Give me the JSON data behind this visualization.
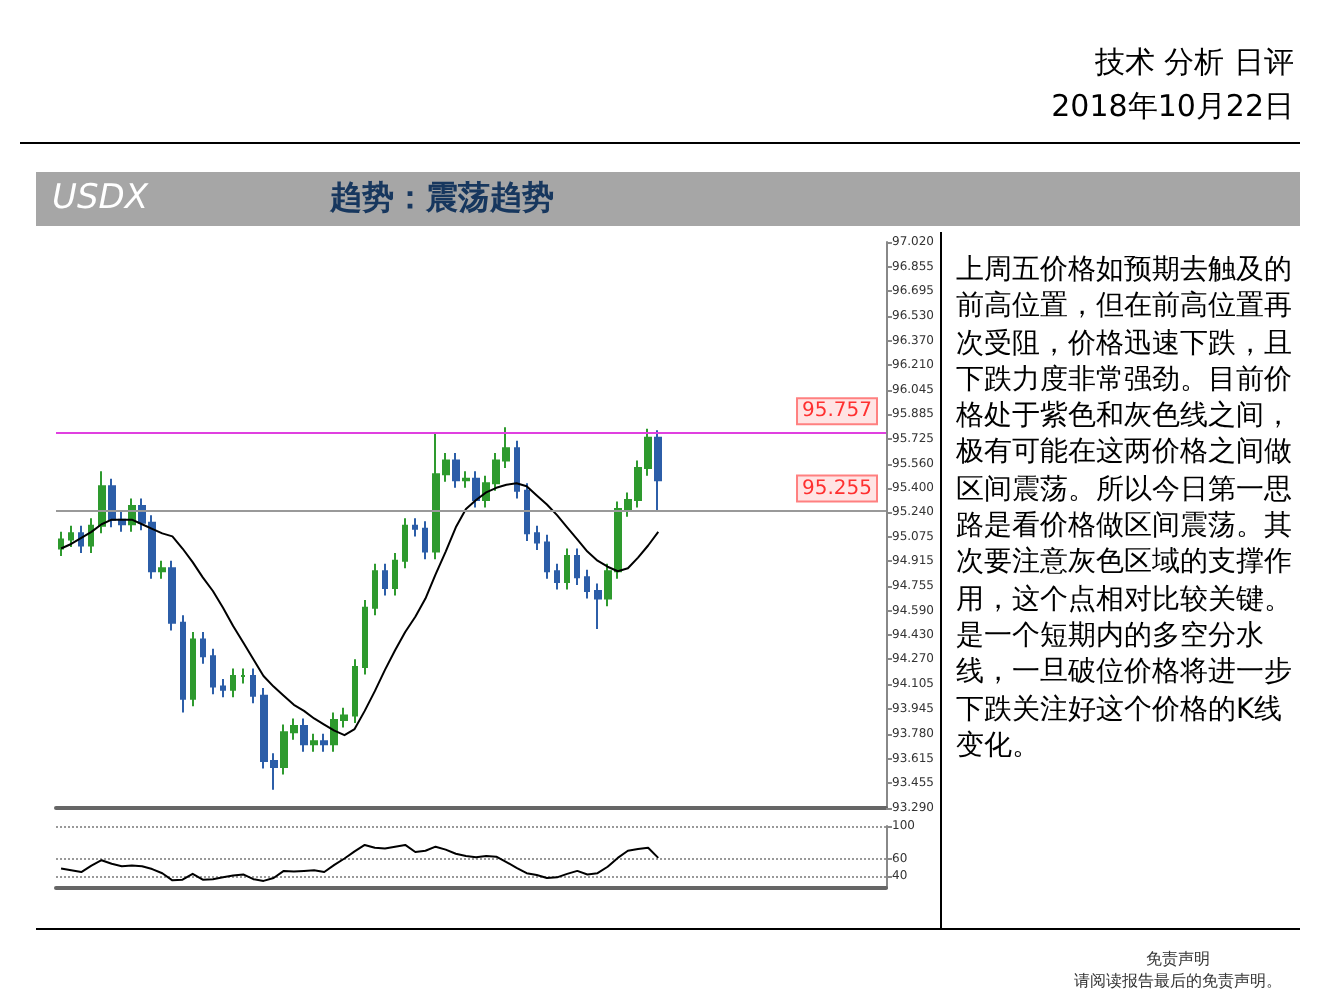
{
  "chart_data": [
    {
      "type": "candlestick",
      "title": "USDX",
      "subtitle": "趋势：震荡趋势",
      "categories": [
        null,
        null,
        null,
        null,
        null,
        null,
        null,
        null,
        null,
        null,
        null,
        null,
        null,
        null,
        null,
        null,
        null,
        null,
        null,
        null,
        null,
        null,
        null,
        null,
        null,
        null,
        null,
        null,
        null,
        null,
        null,
        null,
        null,
        null,
        null,
        null,
        null,
        null,
        null,
        null,
        null,
        null,
        null,
        null,
        null,
        null,
        null,
        null,
        null,
        null,
        null,
        null,
        null,
        null,
        null,
        null,
        null,
        null,
        null,
        null,
        null,
        null,
        null,
        null,
        null,
        null,
        null,
        null,
        null,
        null,
        null,
        null,
        null,
        null,
        null,
        null,
        null,
        null,
        null,
        null,
        null,
        null
      ],
      "ohlc": [
        [
          95.0,
          95.11,
          94.95,
          95.06
        ],
        [
          95.06,
          95.15,
          95.01,
          95.1
        ],
        [
          95.1,
          95.15,
          94.97,
          95.02
        ],
        [
          95.02,
          95.2,
          94.97,
          95.15
        ],
        [
          95.15,
          95.51,
          95.1,
          95.41
        ],
        [
          95.41,
          95.46,
          95.14,
          95.19
        ],
        [
          95.19,
          95.24,
          95.11,
          95.16
        ],
        [
          95.16,
          95.33,
          95.11,
          95.28
        ],
        [
          95.28,
          95.33,
          95.12,
          95.17
        ],
        [
          95.17,
          95.22,
          94.8,
          94.85
        ],
        [
          94.85,
          94.92,
          94.8,
          94.87
        ],
        [
          94.87,
          94.92,
          94.46,
          94.51
        ],
        [
          94.51,
          94.56,
          93.92,
          94.01
        ],
        [
          94.01,
          94.45,
          93.96,
          94.4
        ],
        [
          94.4,
          94.45,
          94.24,
          94.29
        ],
        [
          94.29,
          94.34,
          94.04,
          94.09
        ],
        [
          94.09,
          94.14,
          94.02,
          94.07
        ],
        [
          94.07,
          94.21,
          94.02,
          94.16
        ],
        [
          94.16,
          94.21,
          94.11,
          94.16
        ],
        [
          94.16,
          94.21,
          93.98,
          94.03
        ],
        [
          94.03,
          94.08,
          93.55,
          93.6
        ],
        [
          93.6,
          93.65,
          93.41,
          93.56
        ],
        [
          93.56,
          93.84,
          93.51,
          93.79
        ],
        [
          93.79,
          93.88,
          93.74,
          93.83
        ],
        [
          93.83,
          93.88,
          93.66,
          93.71
        ],
        [
          93.71,
          93.78,
          93.66,
          93.73
        ],
        [
          93.73,
          93.78,
          93.66,
          93.71
        ],
        [
          93.71,
          93.92,
          93.66,
          93.87
        ],
        [
          93.87,
          93.95,
          93.82,
          93.9
        ],
        [
          93.9,
          94.27,
          93.85,
          94.22
        ],
        [
          94.22,
          94.66,
          94.17,
          94.61
        ],
        [
          94.61,
          94.9,
          94.56,
          94.85
        ],
        [
          94.85,
          94.9,
          94.69,
          94.74
        ],
        [
          94.74,
          94.97,
          94.69,
          94.92
        ],
        [
          94.92,
          95.2,
          94.87,
          95.15
        ],
        [
          95.15,
          95.2,
          95.08,
          95.13
        ],
        [
          95.13,
          95.18,
          94.93,
          94.98
        ],
        [
          94.98,
          95.76,
          94.93,
          95.49
        ],
        [
          95.49,
          95.63,
          95.44,
          95.58
        ],
        [
          95.58,
          95.63,
          95.4,
          95.45
        ],
        [
          95.45,
          95.51,
          95.4,
          95.46
        ],
        [
          95.46,
          95.51,
          95.27,
          95.32
        ],
        [
          95.32,
          95.48,
          95.27,
          95.43
        ],
        [
          95.43,
          95.63,
          95.38,
          95.58
        ],
        [
          95.58,
          95.8,
          95.53,
          95.66
        ],
        [
          95.66,
          95.71,
          95.33,
          95.38
        ],
        [
          95.38,
          95.43,
          95.05,
          95.1
        ],
        [
          95.1,
          95.15,
          94.99,
          95.04
        ],
        [
          95.04,
          95.09,
          94.8,
          94.85
        ],
        [
          94.85,
          94.9,
          94.73,
          94.78
        ],
        [
          94.78,
          95.0,
          94.73,
          94.95
        ],
        [
          94.95,
          95.0,
          94.76,
          94.81
        ],
        [
          94.81,
          94.86,
          94.67,
          94.72
        ],
        [
          94.72,
          94.77,
          94.47,
          94.67
        ],
        [
          94.67,
          94.9,
          94.62,
          94.85
        ],
        [
          94.85,
          95.31,
          94.8,
          95.26
        ],
        [
          95.26,
          95.37,
          95.21,
          95.32
        ],
        [
          95.32,
          95.58,
          95.27,
          95.53
        ],
        [
          95.53,
          95.79,
          95.48,
          95.73
        ],
        [
          95.73,
          95.78,
          95.25,
          95.45
        ],
        null,
        null,
        null,
        null,
        null,
        null,
        null,
        null,
        null,
        null,
        null,
        null,
        null,
        null,
        null,
        null,
        null,
        null,
        null,
        null,
        null,
        null
      ],
      "series": [
        {
          "type": "line",
          "color": "#000000",
          "values": [
            95.0,
            95.03,
            95.07,
            95.11,
            95.16,
            95.19,
            95.19,
            95.19,
            95.16,
            95.13,
            95.1,
            95.08,
            95.0,
            94.91,
            94.81,
            94.72,
            94.61,
            94.49,
            94.38,
            94.27,
            94.16,
            94.09,
            94.03,
            93.97,
            93.93,
            93.88,
            93.84,
            93.8,
            93.77,
            93.81,
            93.93,
            94.06,
            94.2,
            94.33,
            94.45,
            94.55,
            94.67,
            94.83,
            94.98,
            95.14,
            95.26,
            95.32,
            95.37,
            95.4,
            95.42,
            95.43,
            95.41,
            95.35,
            95.29,
            95.22,
            95.14,
            95.06,
            94.98,
            94.92,
            94.88,
            94.85,
            94.87,
            94.94,
            95.02,
            95.11,
            null,
            null,
            null,
            null,
            null,
            null,
            null,
            null,
            null,
            null,
            null,
            null,
            null,
            null,
            null,
            null,
            null,
            null,
            null,
            null,
            null,
            null
          ]
        }
      ],
      "ylim": [
        93.29,
        97.02
      ],
      "yticks": [
        {
          "value": 97.02,
          "label": "97.020"
        },
        {
          "value": 96.855,
          "label": "96.855"
        },
        {
          "value": 96.695,
          "label": "96.695"
        },
        {
          "value": 96.53,
          "label": "96.530"
        },
        {
          "value": 96.37,
          "label": "96.370"
        },
        {
          "value": 96.21,
          "label": "96.210"
        },
        {
          "value": 96.045,
          "label": "96.045"
        },
        {
          "value": 95.885,
          "label": "95.885"
        },
        {
          "value": 95.725,
          "label": "95.725"
        },
        {
          "value": 95.56,
          "label": "95.560"
        },
        {
          "value": 95.4,
          "label": "95.400"
        },
        {
          "value": 95.24,
          "label": "95.240"
        },
        {
          "value": 95.075,
          "label": "95.075"
        },
        {
          "value": 94.915,
          "label": "94.915"
        },
        {
          "value": 94.755,
          "label": "94.755"
        },
        {
          "value": 94.59,
          "label": "94.590"
        },
        {
          "value": 94.43,
          "label": "94.430"
        },
        {
          "value": 94.27,
          "label": "94.270"
        },
        {
          "value": 94.105,
          "label": "94.105"
        },
        {
          "value": 93.945,
          "label": "93.945"
        },
        {
          "value": 93.78,
          "label": "93.780"
        },
        {
          "value": 93.615,
          "label": "93.615"
        },
        {
          "value": 93.455,
          "label": "93.455"
        },
        {
          "value": 93.29,
          "label": "93.290"
        }
      ],
      "ref_lines": [
        {
          "axis": "y",
          "value": 95.757,
          "label": "95.757",
          "color": "#e040e0"
        },
        {
          "axis": "y",
          "value": 95.255,
          "label": "95.255",
          "color": "#999999"
        }
      ],
      "annotations": [
        "技术 分析 日评",
        "2018年10月22日",
        "上周五价格如预期去触及的前高位置，但在前高位置再次受阻，价格迅速下跌，且下跌力度非常强劲。目前价格处于紫色和灰色线之间，极有可能在这两价格之间做区间震荡。所以今日第一思路是看价格做区间震荡。其次要注意灰色区域的支撑作用，这个点相对比较关键。是一个短期内的多空分水线，一旦破位价格将进一步下跌关注好这个价格的K线变化。",
        "免责声明",
        "请阅读报告最后的免责声明。"
      ]
    },
    {
      "type": "line",
      "categories": [
        null,
        null,
        null,
        null,
        null,
        null,
        null,
        null,
        null,
        null,
        null,
        null,
        null,
        null,
        null,
        null,
        null,
        null,
        null,
        null,
        null,
        null,
        null,
        null,
        null,
        null,
        null,
        null,
        null,
        null,
        null,
        null,
        null,
        null,
        null,
        null,
        null,
        null,
        null,
        null,
        null,
        null,
        null,
        null,
        null,
        null,
        null,
        null,
        null,
        null,
        null,
        null,
        null,
        null,
        null,
        null,
        null,
        null,
        null,
        null,
        null,
        null,
        null,
        null,
        null,
        null,
        null,
        null,
        null,
        null,
        null,
        null,
        null,
        null,
        null,
        null,
        null,
        null,
        null,
        null,
        null,
        null
      ],
      "series": [
        {
          "color": "#000000",
          "values": [
            48.6,
            46.4,
            44.3,
            52.1,
            58.6,
            54.3,
            51.4,
            52.1,
            51.4,
            47.9,
            42.9,
            34.3,
            35.0,
            42.1,
            35.0,
            35.7,
            37.9,
            40.0,
            41.4,
            35.7,
            33.6,
            37.1,
            45.7,
            45.0,
            45.7,
            46.4,
            44.3,
            52.9,
            60.7,
            69.3,
            77.1,
            73.6,
            72.9,
            75.0,
            77.1,
            68.6,
            70.0,
            75.0,
            71.4,
            66.4,
            63.6,
            62.1,
            63.6,
            62.9,
            56.4,
            49.3,
            42.9,
            40.7,
            37.1,
            37.9,
            42.1,
            45.7,
            41.4,
            42.9,
            50.7,
            61.4,
            70.0,
            72.1,
            73.6,
            61.4,
            null,
            null,
            null,
            null,
            null,
            null,
            null,
            null,
            null,
            null,
            null,
            null,
            null,
            null,
            null,
            null,
            null,
            null,
            null,
            null,
            null,
            null
          ]
        }
      ],
      "ylim": [
        25,
        100
      ],
      "yticks": [
        100,
        60,
        40
      ],
      "grid": "y",
      "marker": "none",
      "line_style": "solid"
    }
  ]
}
